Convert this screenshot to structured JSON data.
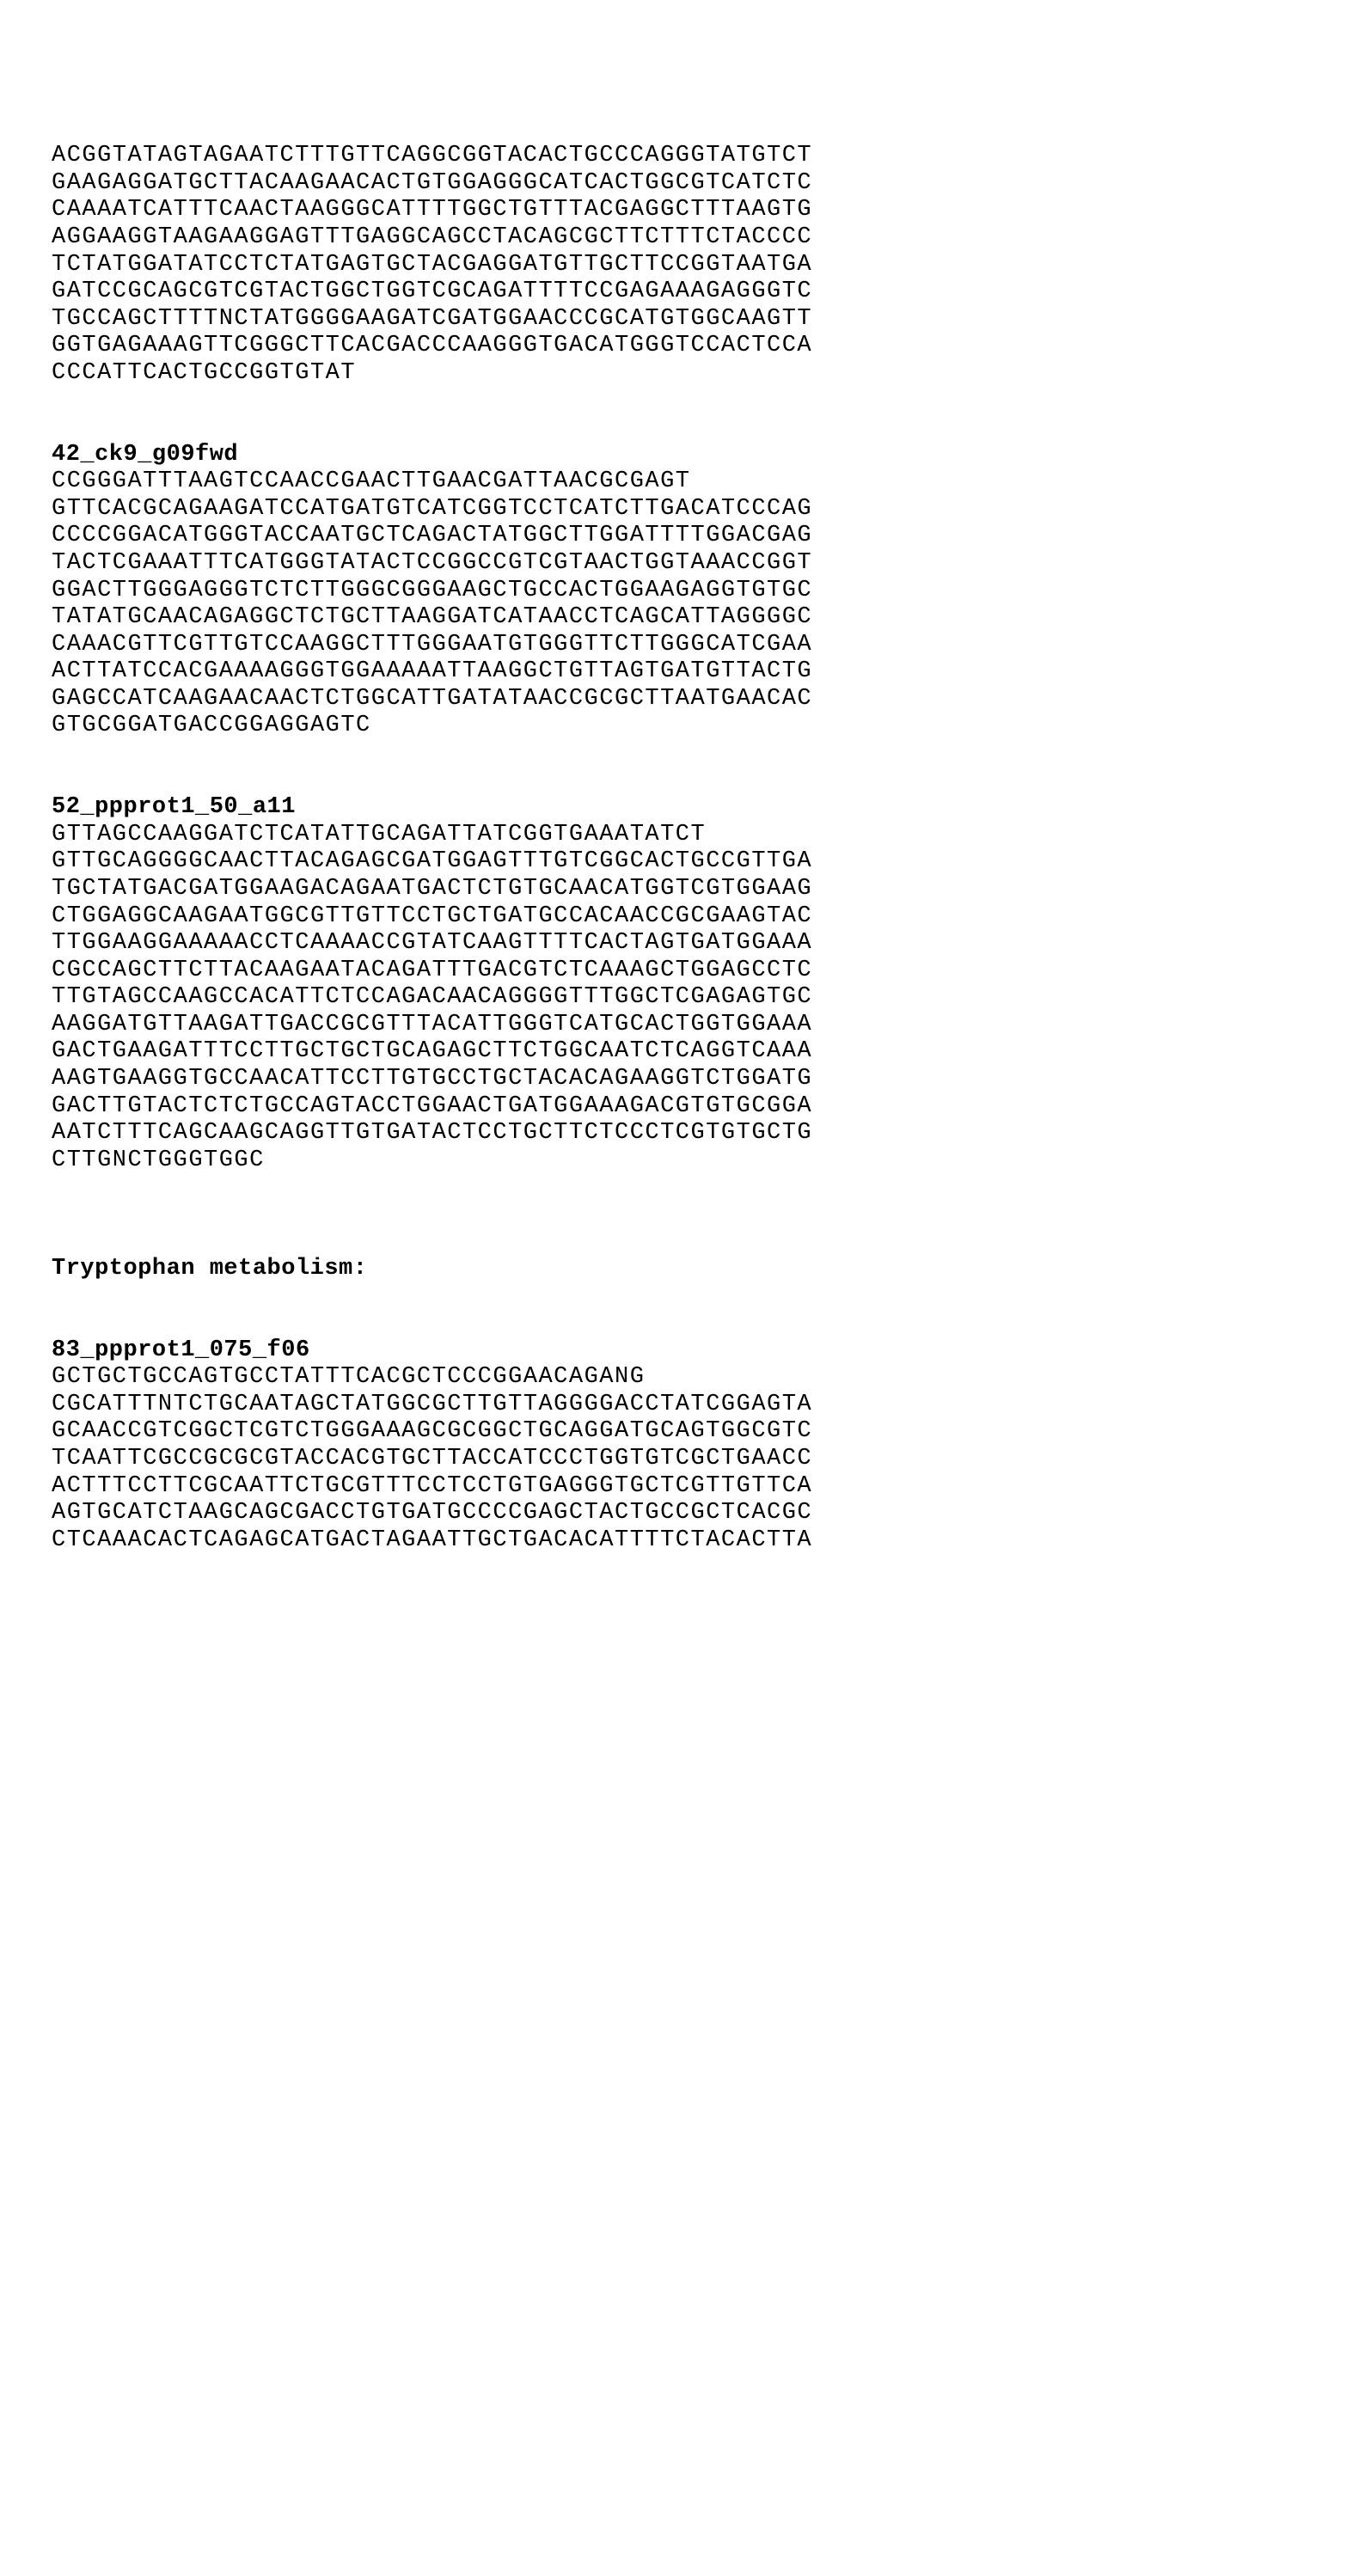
{
  "b0": {
    "s1": "ACGGTATAGTAGAATCTTTGTTCAGGCGGTACACTGCCCAGGGTATGTCT",
    "s2": "GAAGAGGATGCTTACAAGAACACTGTGGAGGGCATCACTGGCGTCATCTC",
    "s3": "CAAAATCATTTCAACTAAGGGCATTTTGGCTGTTTACGAGGCTTTAAGTG",
    "s4": "AGGAAGGTAAGAAGGAGTTTGAGGCAGCCTACAGCGCTTCTTTCTACCCC",
    "s5": "TCTATGGATATCCTCTATGAGTGCTACGAGGATGTTGCTTCCGGTAATGA",
    "s6": "GATCCGCAGCGTCGTACTGGCTGGTCGCAGATTTTCCGAGAAAGAGGGTC",
    "s7": "TGCCAGCTTTTNCTATGGGGAAGATCGATGGAACCCGCATGTGGCAAGTT",
    "s8": "GGTGAGAAAGTTCGGGCTTCACGACCCAAGGGTGACATGGGTCCACTCCA",
    "s9": "CCCATTCACTGCCGGTGTAT"
  },
  "b1": {
    "title": "42_ck9_g09fwd",
    "s1": "CCGGGATTTAAGTCCAACCGAACTTGAACGATTAACGCGAGT",
    "s2": "GTTCACGCAGAAGATCCATGATGTCATCGGTCCTCATCTTGACATCCCAG",
    "s3": "CCCCGGACATGGGTACCAATGCTCAGACTATGGCTTGGATTTTGGACGAG",
    "s4": "TACTCGAAATTTCATGGGTATACTCCGGCCGTCGTAACTGGTAAACCGGT",
    "s5": "GGACTTGGGAGGGTCTCTTGGGCGGGAAGCTGCCACTGGAAGAGGTGTGC",
    "s6": "TATATGCAACAGAGGCTCTGCTTAAGGATCATAACCTCAGCATTAGGGGC",
    "s7": "CAAACGTTCGTTGTCCAAGGCTTTGGGAATGTGGGTTCTTGGGCATCGAA",
    "s8": "ACTTATCCACGAAAAGGGTGGAAAAATTAAGGCTGTTAGTGATGTTACTG",
    "s9": "GAGCCATCAAGAACAACTCTGGCATTGATATAACCGCGCTTAATGAACAC",
    "s10": "GTGCGGATGACCGGAGGAGTC"
  },
  "b2": {
    "title": "52_ppprot1_50_a11",
    "s1": "GTTAGCCAAGGATCTCATATTGCAGATTATCGGTGAAATATCT",
    "s2": "GTTGCAGGGGCAACTTACAGAGCGATGGAGTTTGTCGGCACTGCCGTTGA",
    "s3": "TGCTATGACGATGGAAGACAGAATGACTCTGTGCAACATGGTCGTGGAAG",
    "s4": "CTGGAGGCAAGAATGGCGTTGTTCCTGCTGATGCCACAACCGCGAAGTAC",
    "s5": "TTGGAAGGAAAAACCTCAAAACCGTATCAAGTTTTCACTAGTGATGGAAA",
    "s6": "CGCCAGCTTCTTACAAGAATACAGATTTGACGTCTCAAAGCTGGAGCCTC",
    "s7": "TTGTAGCCAAGCCACATTCTCCAGACAACAGGGGTTTGGCTCGAGAGTGC",
    "s8": "AAGGATGTTAAGATTGACCGCGTTTACATTGGGTCATGCACTGGTGGAAA",
    "s9": "GACTGAAGATTTCCTTGCTGCTGCAGAGCTTCTGGCAATCTCAGGTCAAA",
    "s10": "AAGTGAAGGTGCCAACATTCCTTGTGCCTGCTACACAGAAGGTCTGGATG",
    "s11": "GACTTGTACTCTCTGCCAGTACCTGGAACTGATGGAAAGACGTGTGCGGA",
    "s12": "AATCTTTCAGCAAGCAGGTTGTGATACTCCTGCTTCTCCCTCGTGTGCTG",
    "s13": "CTTGNCTGGGTGGC"
  },
  "heading": "Tryptophan metabolism:",
  "b3": {
    "title": "83_ppprot1_075_f06",
    "s1": "GCTGCTGCCAGTGCCTATTTCACGCTCCCGGAACAGANG",
    "s2": "CGCATTTNTCTGCAATAGCTATGGCGCTTGTTAGGGGACCTATCGGAGTA",
    "s3": "GCAACCGTCGGCTCGTCTGGGAAAGCGCGGCTGCAGGATGCAGTGGCGTC",
    "s4": "TCAATTCGCCGCGCGTACCACGTGCTTACCATCCCTGGTGTCGCTGAACC",
    "s5": "ACTTTCCTTCGCAATTCTGCGTTTCCTCCTGTGAGGGTGCTCGTTGTTCA",
    "s6": "AGTGCATCTAAGCAGCGACCTGTGATGCCCCGAGCTACTGCCGCTCACGC",
    "s7": "CTCAAACACTCAGAGCATGACTAGAATTGCTGACACATTTTCTACACTTA"
  }
}
